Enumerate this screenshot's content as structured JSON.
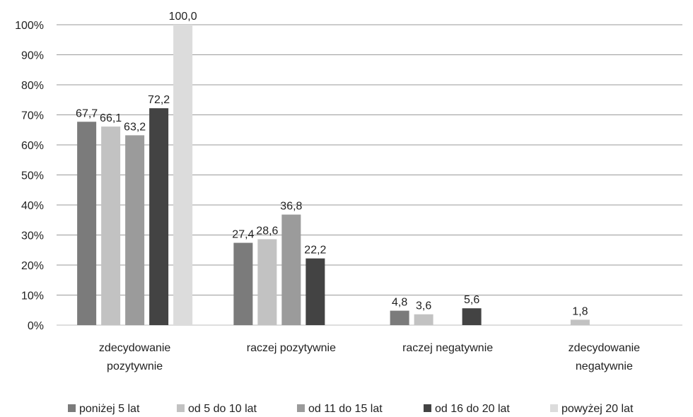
{
  "chart_data": {
    "type": "bar",
    "title": "",
    "xlabel": "",
    "ylabel": "",
    "ylim": [
      0,
      100
    ],
    "y_tick_labels": [
      "0%",
      "10%",
      "20%",
      "30%",
      "40%",
      "50%",
      "60%",
      "70%",
      "80%",
      "90%",
      "100%"
    ],
    "y_ticks": [
      0,
      10,
      20,
      30,
      40,
      50,
      60,
      70,
      80,
      90,
      100
    ],
    "grid": true,
    "legend_position": "bottom",
    "categories": [
      [
        "zdecydowanie",
        "pozytywnie"
      ],
      [
        "raczej pozytywnie"
      ],
      [
        "raczej negatywnie"
      ],
      [
        "zdecydowanie",
        "negatywnie"
      ]
    ],
    "series": [
      {
        "name": "poniżej 5 lat",
        "color": "#7b7b7b",
        "values": [
          67.7,
          27.4,
          4.8,
          null
        ],
        "labels": [
          "67,7",
          "27,4",
          "4,8",
          ""
        ]
      },
      {
        "name": "od 5 do 10 lat",
        "color": "#c2c2c2",
        "values": [
          66.1,
          28.6,
          3.6,
          1.8
        ],
        "labels": [
          "66,1",
          "28,6",
          "3,6",
          "1,8"
        ]
      },
      {
        "name": "od 11 do 15 lat",
        "color": "#9b9b9b",
        "values": [
          63.2,
          36.8,
          null,
          null
        ],
        "labels": [
          "63,2",
          "36,8",
          "",
          ""
        ]
      },
      {
        "name": "od 16 do 20 lat",
        "color": "#434343",
        "values": [
          72.2,
          22.2,
          5.6,
          null
        ],
        "labels": [
          "72,2",
          "22,2",
          "5,6",
          ""
        ]
      },
      {
        "name": "powyżej 20 lat",
        "color": "#dcdcdc",
        "values": [
          100.0,
          null,
          null,
          null
        ],
        "labels": [
          "100,0",
          "",
          "",
          ""
        ]
      }
    ]
  }
}
